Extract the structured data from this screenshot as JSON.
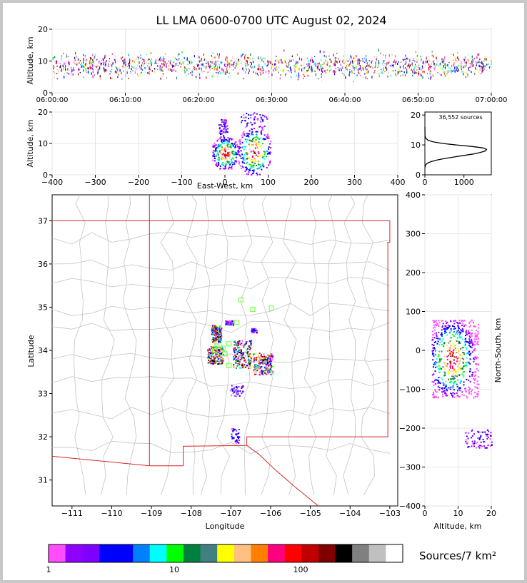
{
  "title": "LL LMA 0600-0700 UTC August 02, 2024",
  "source_count": "36,552 sources",
  "colorbar_label": "Sources/7 km²",
  "chart_data": [
    {
      "id": "time-height",
      "type": "scatter",
      "ylabel": "Altitude, km",
      "ylim": [
        0,
        20
      ],
      "xlim": [
        "06:00:00",
        "07:00:00"
      ],
      "xticks": [
        "06:00:00",
        "06:10:00",
        "06:20:00",
        "06:30:00",
        "06:40:00",
        "06:50:00",
        "07:00:00"
      ],
      "yticks": [
        0,
        10,
        20
      ],
      "grid": true
    },
    {
      "id": "ew-height",
      "type": "heatmap",
      "xlabel": "East-West, km",
      "ylabel": "Altitude, km",
      "xlim": [
        -400,
        400
      ],
      "ylim": [
        0,
        20
      ],
      "xticks": [
        -400,
        -300,
        -200,
        -100,
        0,
        100,
        200,
        300,
        400
      ],
      "yticks": [
        0,
        10,
        20
      ],
      "grid": true,
      "clusters": [
        {
          "x": [
            -30,
            30
          ],
          "y": [
            2,
            12
          ]
        },
        {
          "x": [
            30,
            105
          ],
          "y": [
            0,
            15
          ]
        },
        {
          "x": [
            -15,
            5
          ],
          "y": [
            12,
            18
          ]
        },
        {
          "x": [
            35,
            100
          ],
          "y": [
            15,
            20
          ]
        }
      ]
    },
    {
      "id": "alt-histogram",
      "type": "line",
      "xlim": [
        0,
        1700
      ],
      "ylim": [
        0,
        21
      ],
      "xticks": [
        0,
        1000
      ],
      "yticks": [
        0,
        10,
        20
      ],
      "x": [
        2,
        10,
        30,
        80,
        180,
        330,
        520,
        760,
        1000,
        1250,
        1420,
        1550,
        1580,
        1490,
        1200,
        800,
        450,
        220,
        90,
        40,
        15,
        5,
        2,
        1
      ],
      "y": [
        2.5,
        3,
        3.5,
        4,
        4.5,
        5,
        5.5,
        6,
        6.5,
        7,
        7.5,
        8,
        8.5,
        9,
        9.5,
        10,
        10.5,
        11,
        11.5,
        12,
        12.5,
        13,
        14,
        16
      ]
    },
    {
      "id": "plan-view",
      "type": "scatter",
      "xlabel": "Longitude",
      "ylabel": "Latitude",
      "xlim": [
        -111.5,
        -102.8
      ],
      "ylim": [
        30.4,
        37.6
      ],
      "xticks": [
        -111,
        -110,
        -109,
        -108,
        -107,
        -106,
        -105,
        -104,
        -103
      ],
      "yticks": [
        31,
        32,
        33,
        34,
        35,
        36,
        37
      ],
      "stations": [
        {
          "lon": -107.4,
          "lat": 34.0
        },
        {
          "lon": -107.2,
          "lat": 34.05
        },
        {
          "lon": -107.05,
          "lat": 34.15
        },
        {
          "lon": -107.15,
          "lat": 33.92
        },
        {
          "lon": -107.05,
          "lat": 33.65
        },
        {
          "lon": -106.75,
          "lat": 35.17
        },
        {
          "lon": -106.45,
          "lat": 34.95
        },
        {
          "lon": -105.98,
          "lat": 34.98
        },
        {
          "lon": -106.85,
          "lat": 34.65
        },
        {
          "lon": -107.35,
          "lat": 34.1
        }
      ],
      "clusters": [
        {
          "lon": [
            -107.5,
            -107.25
          ],
          "lat": [
            34.2,
            34.6
          ]
        },
        {
          "lon": [
            -107.6,
            -107.2
          ],
          "lat": [
            33.7,
            34.1
          ]
        },
        {
          "lon": [
            -106.95,
            -106.5
          ],
          "lat": [
            33.6,
            34.25
          ]
        },
        {
          "lon": [
            -106.45,
            -105.95
          ],
          "lat": [
            33.45,
            33.95
          ]
        },
        {
          "lon": [
            -106.5,
            -106.35
          ],
          "lat": [
            34.42,
            34.52
          ]
        },
        {
          "lon": [
            -107.05,
            -106.7
          ],
          "lat": [
            32.95,
            33.2
          ]
        },
        {
          "lon": [
            -107.0,
            -106.8
          ],
          "lat": [
            31.85,
            32.2
          ]
        },
        {
          "lon": [
            -107.15,
            -106.95
          ],
          "lat": [
            34.6,
            34.7
          ]
        }
      ]
    },
    {
      "id": "ns-height",
      "type": "heatmap",
      "xlabel": "Altitude, km",
      "ylabel": "North-South, km",
      "xlim": [
        0,
        20
      ],
      "ylim": [
        -400,
        400
      ],
      "xticks": [
        0,
        10,
        20
      ],
      "yticks": [
        400,
        300,
        200,
        100,
        0,
        -100,
        -200,
        -300,
        -400
      ],
      "grid": true,
      "clusters": [
        {
          "x": [
            2,
            16
          ],
          "y": [
            -120,
            80
          ]
        },
        {
          "x": [
            12,
            20
          ],
          "y": [
            -250,
            -200
          ]
        }
      ]
    },
    {
      "id": "colorbar",
      "type": "heatmap",
      "tick_labels": [
        "1",
        "10",
        "100"
      ],
      "colors": [
        "#ff4cff",
        "#9000ff",
        "#7f00ff",
        "#0000ff",
        "#0000ff",
        "#0080ff",
        "#00ffff",
        "#00ff00",
        "#008040",
        "#408080",
        "#ffff00",
        "#ffc080",
        "#ff8000",
        "#ff0080",
        "#ff0000",
        "#c00000",
        "#800000",
        "#000000",
        "#808080",
        "#c0c0c0",
        "#ffffff"
      ]
    }
  ]
}
